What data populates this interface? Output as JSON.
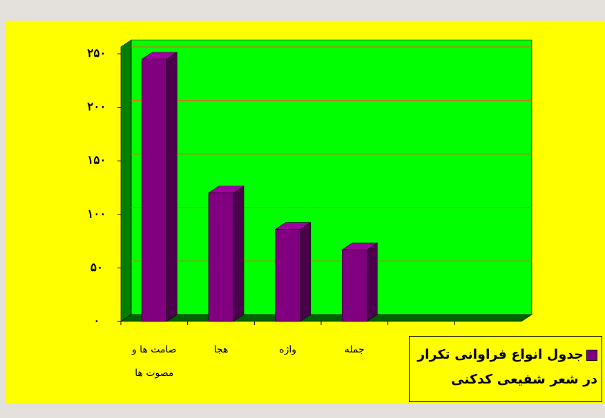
{
  "chart_data": {
    "type": "bar3d",
    "categories": [
      "صامت ها و مصوت ها",
      "هجا",
      "واژه",
      "جمله",
      null,
      null
    ],
    "series": [
      {
        "name": "جدول انواع فراوانی تکرار در شعر شفیعی کدکنی",
        "color": "#800080",
        "values": [
          245,
          120,
          86,
          67,
          null,
          null
        ]
      }
    ],
    "ylim": [
      0,
      250
    ],
    "yticks": [
      {
        "value": 0,
        "label": "۰"
      },
      {
        "value": 50,
        "label": "۵۰"
      },
      {
        "value": 100,
        "label": "۱۰۰"
      },
      {
        "value": 150,
        "label": "۱۵۰"
      },
      {
        "value": 200,
        "label": "۲۰۰"
      },
      {
        "value": 250,
        "label": "۲۵۰"
      }
    ],
    "grid": true,
    "legend": "bottom-right"
  }
}
